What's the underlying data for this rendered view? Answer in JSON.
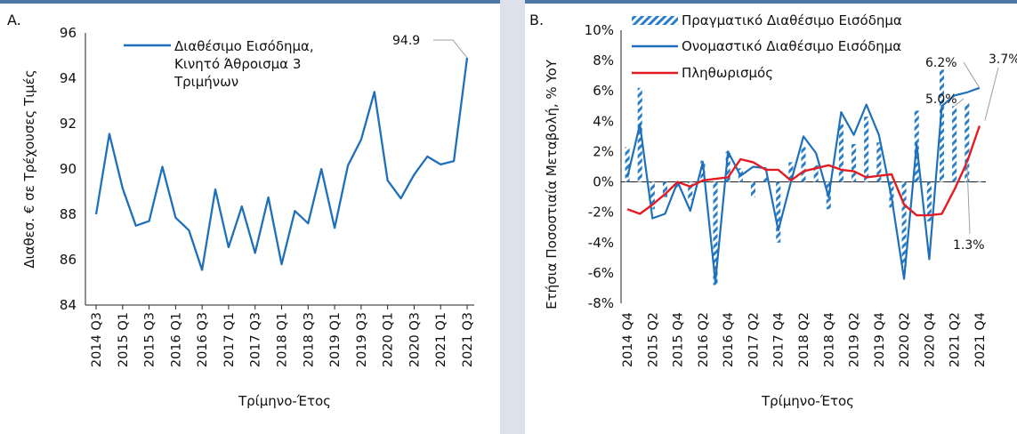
{
  "colors": {
    "line_blue": "#1f6fba",
    "inflation_red": "#e31b23",
    "bar_blue": "#2b7fc9",
    "gap_gray": "#dde2ea",
    "top_bar": "#4f77a8"
  },
  "chart_data": [
    {
      "type": "line",
      "panel_label": "A.",
      "xlabel": "Τρίμηνο-Έτος",
      "ylabel": "Διαθεσ. € σε Τρέχουσες Τιμές",
      "ylim": [
        84,
        96
      ],
      "yticks": [
        "84",
        "86",
        "88",
        "90",
        "92",
        "94",
        "96"
      ],
      "grid": false,
      "legend_position": "top-center",
      "legend": [
        "Διαθέσιμο Εισόδημα,",
        "Κινητό Άθροισμα 3",
        "Τριμήνων"
      ],
      "x_tick_labels": [
        "2014 Q3",
        "2015 Q1",
        "2015 Q3",
        "2016 Q1",
        "2016 Q3",
        "2017 Q1",
        "2017 Q3",
        "2018 Q1",
        "2018 Q3",
        "2019 Q1",
        "2019 Q3",
        "2020 Q1",
        "2020 Q3",
        "2021 Q1",
        "2021 Q3"
      ],
      "x": [
        "2014 Q3",
        "2014 Q4",
        "2015 Q1",
        "2015 Q2",
        "2015 Q3",
        "2015 Q4",
        "2016 Q1",
        "2016 Q2",
        "2016 Q3",
        "2016 Q4",
        "2017 Q1",
        "2017 Q2",
        "2017 Q3",
        "2017 Q4",
        "2018 Q1",
        "2018 Q2",
        "2018 Q3",
        "2018 Q4",
        "2019 Q1",
        "2019 Q2",
        "2019 Q3",
        "2019 Q4",
        "2020 Q1",
        "2020 Q2",
        "2020 Q3",
        "2020 Q4",
        "2021 Q1",
        "2021 Q2",
        "2021 Q3"
      ],
      "series": [
        {
          "values": [
            88.0,
            91.55,
            89.15,
            87.5,
            87.7,
            90.1,
            87.85,
            87.3,
            85.55,
            89.1,
            86.55,
            88.35,
            86.3,
            88.75,
            85.8,
            88.15,
            87.6,
            90.0,
            87.4,
            90.15,
            91.3,
            93.4,
            89.5,
            88.7,
            89.75,
            90.55,
            90.2,
            90.35,
            94.9
          ]
        }
      ],
      "annotations": [
        {
          "text": "94.9",
          "x": "2021 Q3",
          "y": 94.9
        }
      ]
    },
    {
      "type": "bar",
      "panel_label": "B.",
      "xlabel": "Τρίμηνο-Έτος",
      "ylabel": "Ετήσια Ποσοστιαία Μεταβολή, % YoY",
      "ylim": [
        -8,
        10
      ],
      "yticks": [
        "-8%",
        "-6%",
        "-4%",
        "-2%",
        "0%",
        "2%",
        "4%",
        "6%",
        "8%",
        "10%"
      ],
      "grid": false,
      "legend_position": "top",
      "x_tick_labels": [
        "2014 Q4",
        "2015 Q2",
        "2015 Q4",
        "2016 Q2",
        "2016 Q4",
        "2017 Q2",
        "2017 Q4",
        "2018 Q2",
        "2018 Q4",
        "2019 Q2",
        "2019 Q4",
        "2020 Q2",
        "2020 Q4",
        "2021 Q2",
        "2021 Q4"
      ],
      "x": [
        "2014 Q4",
        "2015 Q1",
        "2015 Q2",
        "2015 Q3",
        "2015 Q4",
        "2016 Q1",
        "2016 Q2",
        "2016 Q3",
        "2016 Q4",
        "2017 Q1",
        "2017 Q2",
        "2017 Q3",
        "2017 Q4",
        "2018 Q1",
        "2018 Q2",
        "2018 Q3",
        "2018 Q4",
        "2019 Q1",
        "2019 Q2",
        "2019 Q3",
        "2019 Q4",
        "2020 Q1",
        "2020 Q2",
        "2020 Q3",
        "2020 Q4",
        "2021 Q1",
        "2021 Q2",
        "2021 Q3",
        "2021 Q4"
      ],
      "series": [
        {
          "name": "Πραγματικό Διαθέσιμο Εισόδημα",
          "type": "bar",
          "values": [
            2.3,
            6.2,
            -1.8,
            -1.0,
            -0.4,
            -1.2,
            1.4,
            -6.8,
            2.0,
            0.9,
            -1.0,
            0.3,
            -4.0,
            1.3,
            2.3,
            1.1,
            -1.8,
            3.8,
            2.5,
            4.3,
            2.6,
            -1.7,
            -5.6,
            4.7,
            -2.6,
            7.4,
            5.0,
            5.2,
            0.1
          ]
        },
        {
          "name": "Ονομαστικό Διαθέσιμο Εισόδημα",
          "type": "line",
          "values": [
            0.3,
            3.8,
            -2.4,
            -2.1,
            0.0,
            -1.9,
            1.3,
            -6.6,
            2.0,
            0.4,
            1.0,
            0.9,
            -3.2,
            0.0,
            3.0,
            1.9,
            -1.0,
            4.6,
            3.1,
            5.1,
            3.1,
            -1.0,
            -6.4,
            2.5,
            -5.1,
            5.0,
            5.7,
            5.9,
            6.2
          ]
        },
        {
          "name": "Πληθωρισμός",
          "type": "line",
          "values": [
            -1.8,
            -2.1,
            -1.5,
            -0.8,
            0.0,
            -0.3,
            0.1,
            0.2,
            0.3,
            1.5,
            1.3,
            0.8,
            0.8,
            0.1,
            0.7,
            0.9,
            1.1,
            0.8,
            0.7,
            0.3,
            0.4,
            0.5,
            -1.5,
            -2.2,
            -2.2,
            -2.1,
            -0.5,
            1.3,
            3.7
          ]
        }
      ],
      "annotations": [
        {
          "text": "6.2%",
          "x": "2021 Q4",
          "y": 6.2
        },
        {
          "text": "3.7%",
          "x": "2021 Q4",
          "y": 3.7
        },
        {
          "text": "5.0%",
          "x": "2021 Q2",
          "y": 5.0
        },
        {
          "text": "1.3%",
          "x": "2021 Q3",
          "y": 1.3
        }
      ]
    }
  ]
}
